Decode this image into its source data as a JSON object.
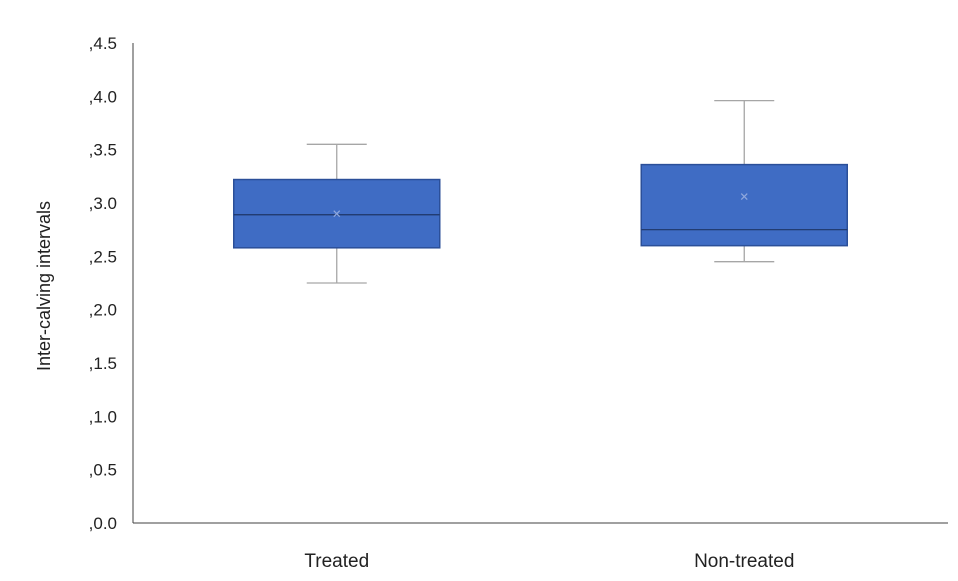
{
  "chart_data": {
    "type": "boxplot",
    "title": "",
    "xlabel": "",
    "ylabel": "Inter-calving intervals",
    "ylim": [
      0,
      4.5
    ],
    "y_ticks": [
      ",0.0",
      ",0.5",
      ",1.0",
      ",1.5",
      ",2.0",
      ",2.5",
      ",3.0",
      ",3.5",
      ",4.0",
      ",4.5"
    ],
    "y_tick_values": [
      0,
      0.5,
      1.0,
      1.5,
      2.0,
      2.5,
      3.0,
      3.5,
      4.0,
      4.5
    ],
    "categories": [
      "Treated",
      "Non-treated"
    ],
    "boxes": [
      {
        "category": "Treated",
        "min": 2.25,
        "q1": 2.58,
        "median": 2.89,
        "q3": 3.22,
        "max": 3.55,
        "mean": 2.9
      },
      {
        "category": "Non-treated",
        "min": 2.45,
        "q1": 2.6,
        "median": 2.75,
        "q3": 3.36,
        "max": 3.96,
        "mean": 3.06
      }
    ],
    "box_color": "#3F6CC4",
    "box_edge_color": "#2B4F99",
    "whisker_color": "#A6A6A6",
    "axis_color": "#404040",
    "grid": false,
    "legend": "none"
  }
}
